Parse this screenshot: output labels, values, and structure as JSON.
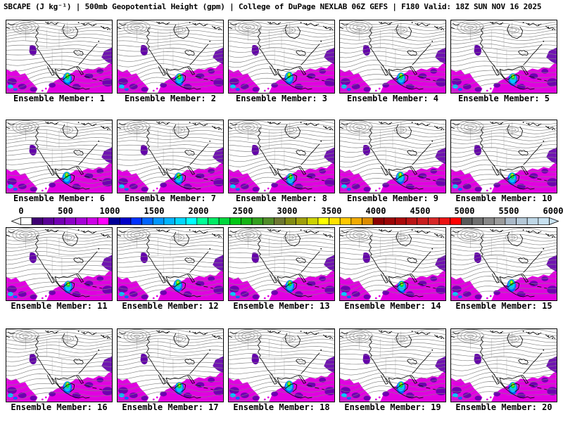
{
  "header": {
    "title": "SBCAPE (J kg⁻¹) | 500mb Geopotential Height (gpm) | College of DuPage NEXLAB 06Z GEFS | F180 Valid: 18Z SUN NOV 16 2025",
    "field": "SBCAPE (J kg⁻¹)",
    "overlay": "500mb Geopotential Height (gpm)",
    "source": "College of DuPage NEXLAB 06Z GEFS",
    "forecast": "F180",
    "valid": "18Z SUN NOV 16 2025"
  },
  "panels": [
    {
      "id": 1,
      "label": "Ensemble Member: 1"
    },
    {
      "id": 2,
      "label": "Ensemble Member: 2"
    },
    {
      "id": 3,
      "label": "Ensemble Member: 3"
    },
    {
      "id": 4,
      "label": "Ensemble Member: 4"
    },
    {
      "id": 5,
      "label": "Ensemble Member: 5"
    },
    {
      "id": 6,
      "label": "Ensemble Member: 6"
    },
    {
      "id": 7,
      "label": "Ensemble Member: 7"
    },
    {
      "id": 8,
      "label": "Ensemble Member: 8"
    },
    {
      "id": 9,
      "label": "Ensemble Member: 9"
    },
    {
      "id": 10,
      "label": "Ensemble Member: 10"
    },
    {
      "id": 11,
      "label": "Ensemble Member: 11"
    },
    {
      "id": 12,
      "label": "Ensemble Member: 12"
    },
    {
      "id": 13,
      "label": "Ensemble Member: 13"
    },
    {
      "id": 14,
      "label": "Ensemble Member: 14"
    },
    {
      "id": 15,
      "label": "Ensemble Member: 15"
    },
    {
      "id": 16,
      "label": "Ensemble Member: 16"
    },
    {
      "id": 17,
      "label": "Ensemble Member: 17"
    },
    {
      "id": 18,
      "label": "Ensemble Member: 18"
    },
    {
      "id": 19,
      "label": "Ensemble Member: 19"
    },
    {
      "id": 20,
      "label": "Ensemble Member: 20"
    }
  ],
  "colorbar": {
    "ticks": [
      "0",
      "500",
      "1000",
      "1500",
      "2000",
      "2500",
      "3000",
      "3500",
      "4000",
      "4500",
      "5000",
      "5500",
      "6000"
    ],
    "min": 0,
    "max": 6000,
    "tick_interval": 500,
    "segment_step": 125,
    "units": "J kg⁻¹",
    "segment_colors": [
      "#ffffff",
      "#3f0073",
      "#5a0096",
      "#7300b4",
      "#8c00c8",
      "#a500d7",
      "#cc00e6",
      "#ff00ff",
      "#000096",
      "#0000c8",
      "#0032ff",
      "#0064ff",
      "#0096ff",
      "#00b4ff",
      "#00d7ff",
      "#00ffff",
      "#00ff96",
      "#00eb64",
      "#00d73c",
      "#00c814",
      "#14b414",
      "#32a01e",
      "#508c28",
      "#6e7832",
      "#828c14",
      "#a0a00a",
      "#cdd200",
      "#ffff00",
      "#ffe100",
      "#ffc800",
      "#f0aa00",
      "#dc8c00",
      "#8c0000",
      "#9b0505",
      "#aa0a0a",
      "#b91414",
      "#c81e1e",
      "#d72828",
      "#eb1414",
      "#ff0000",
      "#595959",
      "#6e6e6e",
      "#878787",
      "#9b9b9b",
      "#aab9c8",
      "#b4c8d7",
      "#bed7e6",
      "#c8e1f0"
    ]
  },
  "map_colors": {
    "background": "#ffffff",
    "height_contour": "#828282",
    "coastline": "#000000",
    "cape_magenta": "#e100e1",
    "cape_purple": "#6400aa",
    "cape_blue": "#0064ff",
    "cape_cyan": "#00c8ff",
    "cape_green": "#00dc32",
    "cape_yellow_green": "#c8f000"
  },
  "chart_data": {
    "type": "heatmap",
    "subtype": "ensemble-map-grid",
    "title": "SBCAPE (J kg⁻¹) | 500mb Geopotential Height (gpm)",
    "model": "GEFS",
    "run": "06Z",
    "source": "College of DuPage NEXLAB",
    "forecast_hour": "F180",
    "valid_time": "18Z SUN NOV 16 2025",
    "region": "North America",
    "grid_layout": {
      "rows": 4,
      "cols": 5,
      "colorbar_position": "between rows 2 and 3"
    },
    "shaded_variable": {
      "name": "SBCAPE",
      "units": "J kg⁻¹",
      "range": [
        0,
        6000
      ],
      "tick_values": [
        0,
        500,
        1000,
        1500,
        2000,
        2500,
        3000,
        3500,
        4000,
        4500,
        5000,
        5500,
        6000
      ]
    },
    "contour_variable": {
      "name": "500mb Geopotential Height",
      "units": "gpm",
      "style": "gray contour lines"
    },
    "members": [
      1,
      2,
      3,
      4,
      5,
      6,
      7,
      8,
      9,
      10,
      11,
      12,
      13,
      14,
      15,
      16,
      17,
      18,
      19,
      20
    ],
    "notable_features": [
      "High CAPE (magenta/purple, ~500-1500 J/kg) across Gulf of Mexico, Caribbean and tropical eastern Pacific in all members",
      "Local CAPE maximum (cyan/green, ~1500-2500 J/kg) near Yucatan / Central America",
      "Small CAPE patch over Pacific Northwest coast",
      "CAPE patch off the US East Coast over the western Atlantic",
      "Closed 500mb low (spiral contours) near the Aleutians / Gulf of Alaska in upper-left of each panel"
    ]
  }
}
